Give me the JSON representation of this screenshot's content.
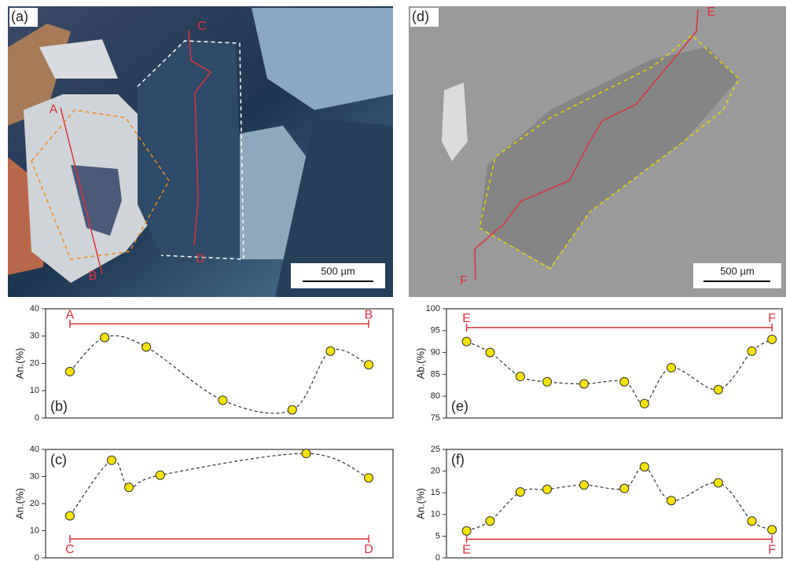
{
  "micrographs": [
    {
      "label": "(a)",
      "scale_bar": "500 µm",
      "points": [
        "A",
        "B",
        "C",
        "D"
      ]
    },
    {
      "label": "(d)",
      "scale_bar": "500 µm",
      "points": [
        "E",
        "F"
      ]
    }
  ],
  "chart_data": [
    {
      "type": "line",
      "title": "(b)",
      "title_position": "bottom-left",
      "y_label": "An.(%)",
      "x": [
        7,
        17,
        29,
        51,
        71,
        82,
        93
      ],
      "xlim": [
        0,
        100
      ],
      "ylim": [
        0,
        40
      ],
      "yticks": [
        0,
        10,
        20,
        30,
        40
      ],
      "series": [
        {
          "color": "#f5e400",
          "values": [
            17,
            29.5,
            26,
            6.5,
            3,
            24.5,
            19.5
          ]
        }
      ],
      "profile": {
        "labels": [
          "A",
          "B"
        ],
        "x": [
          7,
          93
        ],
        "y": 34.5,
        "color": "#d9333f"
      }
    },
    {
      "type": "line",
      "title": "(c)",
      "title_position": "top-left",
      "y_label": "An.(%)",
      "x": [
        7,
        19,
        24,
        33,
        75,
        93
      ],
      "xlim": [
        0,
        100
      ],
      "ylim": [
        0,
        40
      ],
      "yticks": [
        0,
        10,
        20,
        30,
        40
      ],
      "series": [
        {
          "color": "#f5e400",
          "values": [
            15.5,
            36,
            26,
            30.5,
            38.5,
            29.5
          ]
        }
      ],
      "profile": {
        "labels": [
          "C",
          "D"
        ],
        "x": [
          7,
          93
        ],
        "y": 7,
        "color": "#d9333f"
      }
    },
    {
      "type": "line",
      "title": "(e)",
      "title_position": "bottom-left",
      "y_label": "Ab.(%)",
      "x": [
        6,
        13,
        22,
        30,
        41,
        53,
        59,
        67,
        81,
        91,
        97
      ],
      "xlim": [
        0,
        100
      ],
      "ylim": [
        75,
        100
      ],
      "yticks": [
        75,
        80,
        85,
        90,
        95,
        100
      ],
      "series": [
        {
          "color": "#f5e400",
          "values": [
            92.5,
            90,
            84.5,
            83.3,
            82.8,
            83.3,
            78.3,
            86.5,
            81.5,
            90.3,
            93
          ]
        }
      ],
      "profile": {
        "labels": [
          "E",
          "F"
        ],
        "x": [
          6,
          97
        ],
        "y": 95.7,
        "color": "#d9333f"
      }
    },
    {
      "type": "line",
      "title": "(f)",
      "title_position": "top-left",
      "y_label": "An.(%)",
      "x": [
        6,
        13,
        22,
        30,
        41,
        53,
        59,
        67,
        81,
        91,
        97
      ],
      "xlim": [
        0,
        100
      ],
      "ylim": [
        0,
        25
      ],
      "yticks": [
        0,
        5,
        10,
        15,
        20,
        25
      ],
      "series": [
        {
          "color": "#f5e400",
          "values": [
            6.2,
            8.5,
            15.2,
            15.8,
            16.8,
            16,
            21,
            13.2,
            17.3,
            8.5,
            6.5
          ]
        }
      ],
      "profile": {
        "labels": [
          "E",
          "F"
        ],
        "x": [
          6,
          97
        ],
        "y": 4.3,
        "color": "#d9333f"
      }
    }
  ]
}
